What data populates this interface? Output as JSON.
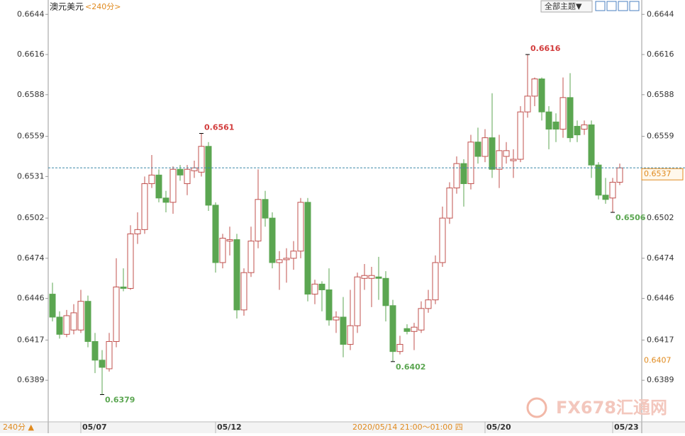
{
  "chart_data": {
    "type": "candlestick",
    "title": "澳元美元",
    "subtitle": "<240分>",
    "categories": [
      null,
      null,
      null,
      null,
      null,
      "05/07",
      null,
      null,
      null,
      null,
      null,
      null,
      null,
      null,
      null,
      null,
      null,
      null,
      null,
      null,
      null,
      null,
      null,
      null,
      "05/12",
      null,
      null,
      null,
      null,
      null,
      null,
      null,
      null,
      null,
      null,
      null,
      null,
      null,
      null,
      null,
      null,
      null,
      null,
      null,
      null,
      null,
      null,
      null,
      null,
      null,
      null,
      null,
      null,
      null,
      null,
      null,
      null,
      null,
      null,
      null,
      null,
      null,
      "05/20",
      null,
      null,
      null,
      null,
      null,
      null,
      null,
      null,
      null,
      null,
      null,
      null,
      null,
      null,
      null,
      null,
      null,
      "05/23"
    ],
    "open": [
      0.6449,
      0.6433,
      0.6421,
      0.6424,
      0.6424,
      0.6444,
      0.6416,
      0.6403,
      0.6397,
      0.6416,
      0.6454,
      0.6453,
      0.6491,
      0.6494,
      0.6526,
      0.6532,
      0.6516,
      0.6513,
      0.6536,
      0.6526,
      0.6535,
      0.6534,
      0.6552,
      0.6511,
      0.6471,
      0.6486,
      0.6487,
      0.6438,
      0.6464,
      0.6486,
      0.6515,
      0.6502,
      0.6471,
      0.6473,
      0.6474,
      0.6479,
      0.6513,
      0.6449,
      0.6456,
      0.6452,
      0.6431,
      0.6433,
      0.6414,
      0.6427,
      0.646,
      0.646,
      0.6461,
      0.646,
      0.6441,
      0.6409,
      0.6425,
      0.6423,
      0.6424,
      0.6439,
      0.6445,
      0.6471,
      0.6502,
      0.6523,
      0.654,
      0.6526,
      0.6555,
      0.6545,
      0.6558,
      0.6536,
      0.6545,
      0.6542,
      0.6543,
      0.6576,
      0.6587,
      0.6599,
      0.6576,
      0.6569,
      0.6564,
      0.6586,
      0.6566,
      0.6564,
      0.6567,
      0.6539,
      0.6518,
      0.6516,
      0.6527
    ],
    "high": [
      0.6457,
      0.6437,
      0.6438,
      0.6442,
      0.6452,
      0.6448,
      0.6422,
      0.641,
      0.6422,
      0.6474,
      0.6467,
      0.6497,
      0.6506,
      0.6531,
      0.6546,
      0.6536,
      0.6521,
      0.6538,
      0.6539,
      0.6539,
      0.6542,
      0.6561,
      0.6555,
      0.6513,
      0.6491,
      0.6496,
      0.6491,
      0.6467,
      0.6496,
      0.6536,
      0.6521,
      0.6506,
      0.6479,
      0.6481,
      0.6486,
      0.6516,
      0.6516,
      0.6459,
      0.6458,
      0.6467,
      0.6437,
      0.6447,
      0.6452,
      0.6464,
      0.647,
      0.6468,
      0.6475,
      0.6465,
      0.6445,
      0.642,
      0.6428,
      0.6429,
      0.6444,
      0.6452,
      0.6476,
      0.651,
      0.6527,
      0.6545,
      0.6543,
      0.656,
      0.6565,
      0.6564,
      0.6589,
      0.656,
      0.6555,
      0.655,
      0.658,
      0.6616,
      0.66,
      0.66,
      0.658,
      0.6575,
      0.66,
      0.6603,
      0.657,
      0.657,
      0.657,
      0.6541,
      0.653,
      0.653,
      0.654
    ],
    "low": [
      0.643,
      0.6418,
      0.6419,
      0.6421,
      0.6422,
      0.6412,
      0.6394,
      0.6379,
      0.6395,
      0.6412,
      0.6451,
      0.6452,
      0.6484,
      0.6491,
      0.6523,
      0.6513,
      0.6506,
      0.6505,
      0.6528,
      0.6518,
      0.653,
      0.6531,
      0.6507,
      0.6464,
      0.6467,
      0.6476,
      0.6432,
      0.6434,
      0.6461,
      0.6481,
      0.6496,
      0.6467,
      0.6452,
      0.6457,
      0.6466,
      0.6474,
      0.6444,
      0.6442,
      0.6437,
      0.6427,
      0.6422,
      0.6405,
      0.641,
      0.6422,
      0.6452,
      0.644,
      0.6445,
      0.643,
      0.6402,
      0.6407,
      0.6421,
      0.641,
      0.6422,
      0.6436,
      0.6442,
      0.6468,
      0.6498,
      0.6519,
      0.651,
      0.6522,
      0.654,
      0.6541,
      0.653,
      0.6523,
      0.654,
      0.653,
      0.6541,
      0.6572,
      0.658,
      0.657,
      0.655,
      0.6555,
      0.6558,
      0.6555,
      0.6555,
      0.656,
      0.653,
      0.6515,
      0.6512,
      0.6506,
      0.6525
    ],
    "close": [
      0.6433,
      0.6421,
      0.6434,
      0.6436,
      0.6444,
      0.6416,
      0.6403,
      0.6398,
      0.6416,
      0.6454,
      0.6453,
      0.6491,
      0.6494,
      0.6526,
      0.6532,
      0.6516,
      0.6513,
      0.6536,
      0.6532,
      0.6536,
      0.6537,
      0.6552,
      0.6511,
      0.6471,
      0.6488,
      0.6487,
      0.6438,
      0.6464,
      0.6486,
      0.6515,
      0.6502,
      0.6471,
      0.6473,
      0.6474,
      0.6479,
      0.6513,
      0.6449,
      0.6456,
      0.6452,
      0.6431,
      0.6433,
      0.6414,
      0.6427,
      0.6461,
      0.6462,
      0.6462,
      0.646,
      0.6441,
      0.6409,
      0.6414,
      0.6423,
      0.6426,
      0.6439,
      0.6445,
      0.6471,
      0.6502,
      0.6523,
      0.654,
      0.6526,
      0.6555,
      0.6545,
      0.6558,
      0.6536,
      0.6549,
      0.6549,
      0.6543,
      0.6576,
      0.6587,
      0.6599,
      0.6576,
      0.6564,
      0.6564,
      0.6586,
      0.6558,
      0.656,
      0.6567,
      0.6539,
      0.6518,
      0.6515,
      0.6527,
      0.6537
    ],
    "up_color": "#c0504d",
    "down_color": "#5ba651",
    "ylim": [
      0.636,
      0.6654
    ],
    "yticks": [
      0.6644,
      0.6616,
      0.6588,
      0.6559,
      0.6531,
      0.6502,
      0.6474,
      0.6446,
      0.6417,
      0.6389
    ],
    "last_price": 0.6537,
    "cursor_value": 0.6407,
    "cursor_label": "2020/05/14 21:00～01:00 四"
  },
  "toolbar": {
    "theme_button": "全部主题▼",
    "period_button": "240分 ▲"
  },
  "watermark": "FX678汇通网"
}
